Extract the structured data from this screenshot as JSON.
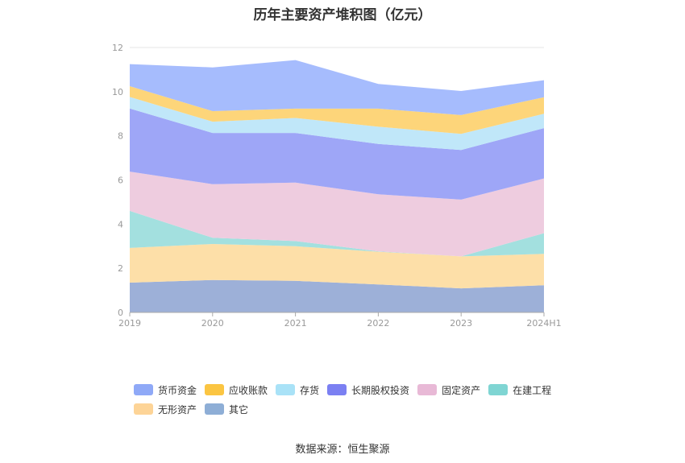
{
  "chart_data": {
    "type": "area",
    "stacked": true,
    "title": "历年主要资产堆积图（亿元）",
    "categories": [
      "2019",
      "2020",
      "2021",
      "2022",
      "2023",
      "2024H1"
    ],
    "ylim": [
      0,
      12
    ],
    "yticks": [
      0,
      2,
      4,
      6,
      8,
      10,
      12
    ],
    "grid": true,
    "legend_position": "bottom",
    "series": [
      {
        "name": "其它",
        "color": "#9db0d8",
        "values": [
          1.35,
          1.47,
          1.43,
          1.27,
          1.09,
          1.23
        ]
      },
      {
        "name": "无形资产",
        "color": "#fddfa8",
        "values": [
          1.57,
          1.63,
          1.57,
          1.48,
          1.45,
          1.42
        ]
      },
      {
        "name": "在建工程",
        "color": "#a3e0df",
        "values": [
          1.68,
          0.28,
          0.23,
          0.02,
          0.0,
          0.94
        ]
      },
      {
        "name": "固定资产",
        "color": "#eeccdf",
        "values": [
          1.78,
          2.43,
          2.65,
          2.58,
          2.57,
          2.48
        ]
      },
      {
        "name": "长期股权投资",
        "color": "#9ea6f7",
        "values": [
          2.86,
          2.32,
          2.25,
          2.28,
          2.25,
          2.28
        ]
      },
      {
        "name": "存货",
        "color": "#c0e7f9",
        "values": [
          0.52,
          0.51,
          0.68,
          0.78,
          0.73,
          0.65
        ]
      },
      {
        "name": "应收账款",
        "color": "#fdd57a",
        "values": [
          0.49,
          0.48,
          0.42,
          0.82,
          0.85,
          0.75
        ]
      },
      {
        "name": "货币资金",
        "color": "#a6bcfd",
        "values": [
          1.0,
          1.98,
          2.2,
          1.12,
          1.09,
          0.77
        ]
      }
    ]
  },
  "legend": {
    "row1": [
      {
        "name": "货币资金",
        "color": "#8fa9f7"
      },
      {
        "name": "应收账款",
        "color": "#fbc542"
      },
      {
        "name": "存货",
        "color": "#a9e2f7"
      },
      {
        "name": "长期股权投资",
        "color": "#7b80f2"
      },
      {
        "name": "固定资产",
        "color": "#e8b9d6"
      },
      {
        "name": "在建工程",
        "color": "#7fd5d3"
      }
    ],
    "row2": [
      {
        "name": "无形资产",
        "color": "#fdd497"
      },
      {
        "name": "其它",
        "color": "#8eaed6"
      }
    ]
  },
  "source": "数据来源：恒生聚源"
}
